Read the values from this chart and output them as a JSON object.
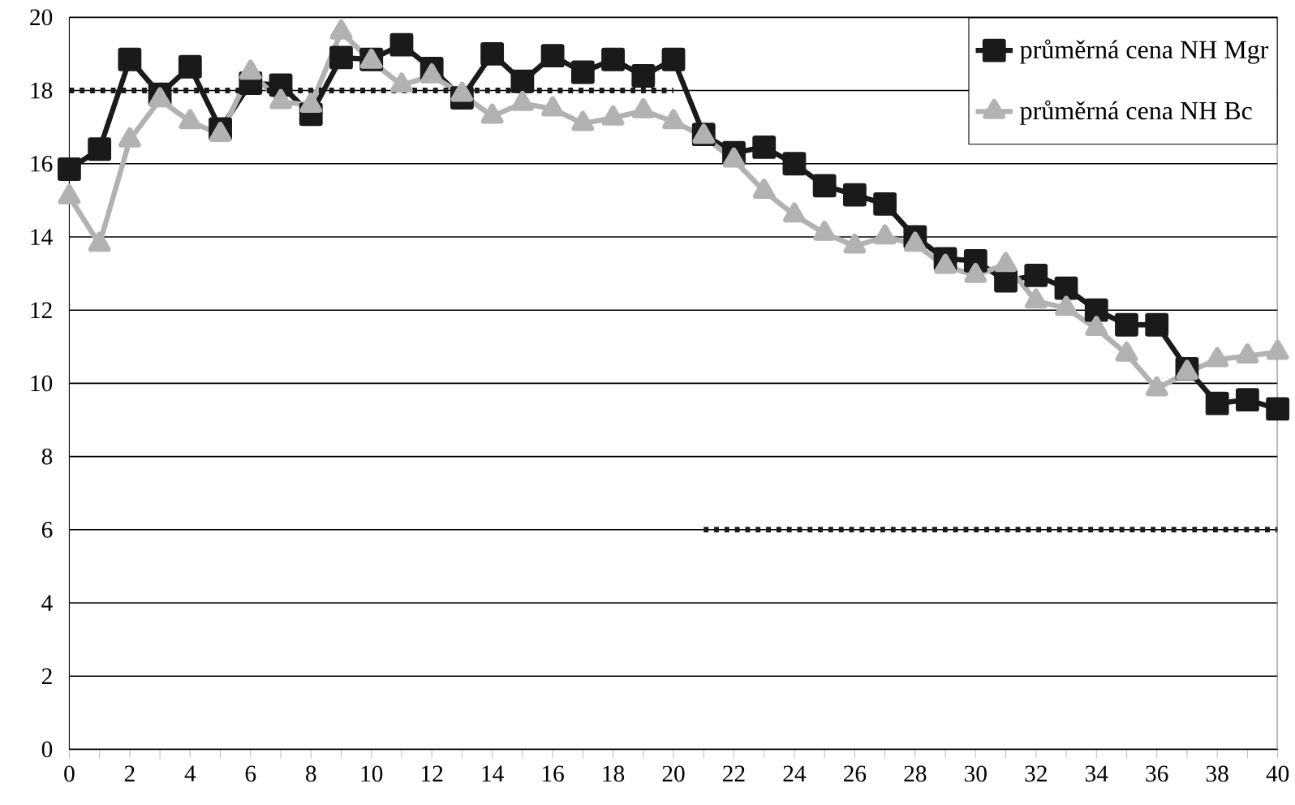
{
  "chart_data": {
    "type": "line",
    "x": [
      0,
      1,
      2,
      3,
      4,
      5,
      6,
      7,
      8,
      9,
      10,
      11,
      12,
      13,
      14,
      15,
      16,
      17,
      18,
      19,
      20,
      21,
      22,
      23,
      24,
      25,
      26,
      27,
      28,
      29,
      30,
      31,
      32,
      33,
      34,
      35,
      36,
      37,
      38,
      39,
      40
    ],
    "series": [
      {
        "name": "průměrná cena NH Mgr",
        "color": "#1a1a1a",
        "marker": "square",
        "values": [
          15.85,
          16.4,
          18.85,
          17.9,
          18.65,
          16.95,
          18.2,
          18.15,
          17.35,
          18.9,
          18.85,
          19.25,
          18.6,
          17.8,
          19.0,
          18.25,
          18.95,
          18.5,
          18.85,
          18.4,
          18.85,
          16.8,
          16.3,
          16.45,
          16.0,
          15.4,
          15.15,
          14.9,
          14.0,
          13.4,
          13.35,
          12.8,
          12.95,
          12.6,
          12.0,
          11.6,
          11.6,
          10.4,
          9.45,
          9.55,
          9.3
        ]
      },
      {
        "name": "průměrná cena NH Bc",
        "color": "#b2b2b2",
        "marker": "triangle",
        "values": [
          15.1,
          13.8,
          16.65,
          17.75,
          17.15,
          16.8,
          18.5,
          17.7,
          17.6,
          19.6,
          18.8,
          18.15,
          18.4,
          17.9,
          17.3,
          17.65,
          17.5,
          17.1,
          17.25,
          17.45,
          17.15,
          16.75,
          16.1,
          15.25,
          14.6,
          14.1,
          13.75,
          14.0,
          13.8,
          13.2,
          12.95,
          13.25,
          12.25,
          12.05,
          11.5,
          10.8,
          9.85,
          10.3,
          10.65,
          10.75,
          10.85
        ]
      },
      {
        "color": "#1a1a1a",
        "line_style": "dotted",
        "marker": "none",
        "x": [
          0,
          20
        ],
        "values": [
          18,
          18
        ]
      },
      {
        "color": "#1a1a1a",
        "line_style": "dotted",
        "marker": "none",
        "x": [
          21,
          40
        ],
        "values": [
          6,
          6
        ]
      }
    ],
    "xlim": [
      0,
      40
    ],
    "xticks": [
      0,
      2,
      4,
      6,
      8,
      10,
      12,
      14,
      16,
      18,
      20,
      22,
      24,
      26,
      28,
      30,
      32,
      34,
      36,
      38,
      40
    ],
    "ylim": [
      0,
      20
    ],
    "yticks": [
      0,
      2,
      4,
      6,
      8,
      10,
      12,
      14,
      16,
      18,
      20
    ],
    "grid": "y",
    "legend": "top right",
    "line_style": "solid"
  }
}
